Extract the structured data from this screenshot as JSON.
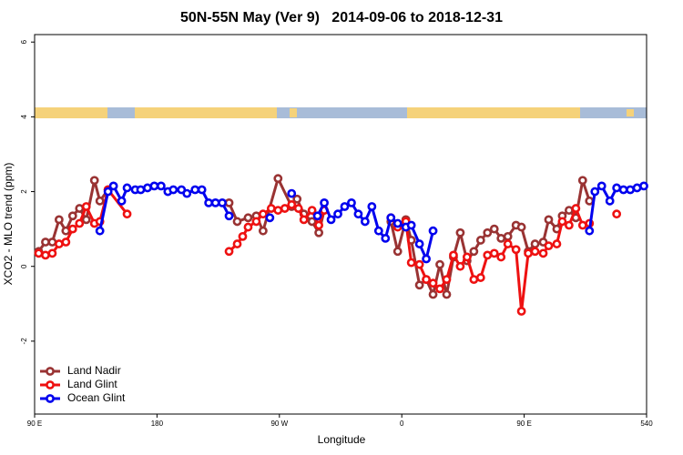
{
  "chart_data": {
    "type": "line",
    "title": "50N-55N May (Ver 9)   2014-09-06 to 2018-12-31",
    "x_label": "Longitude",
    "y_label": "XCO2 - MLO trend (ppm)",
    "xlim": [
      90,
      540
    ],
    "xticks": [
      {
        "value": 90,
        "label": "90 E"
      },
      180,
      {
        "value": 270,
        "label": "90 W"
      },
      {
        "value": 360,
        "label": "0"
      },
      {
        "value": 450,
        "label": "90 E"
      },
      540
    ],
    "ylim": [
      -3.95,
      6.2
    ],
    "yticks": [
      -2,
      0,
      2,
      4,
      6
    ],
    "legend": "bottom-left",
    "series": [
      {
        "name": "Land Nadir",
        "color": "#993333",
        "x": [
          93,
          98,
          103,
          108,
          113,
          118,
          123,
          128,
          134,
          138,
          144,
          190,
          233,
          239,
          247,
          253,
          258,
          269,
          279,
          283,
          288,
          294,
          299,
          303,
          330,
          352,
          357,
          363,
          367,
          373,
          378,
          383,
          388,
          393,
          398,
          403,
          408,
          413,
          418,
          423,
          428,
          433,
          438,
          444,
          448,
          453,
          458,
          464,
          468,
          474,
          478,
          483,
          488,
          493,
          498
        ],
        "values": [
          0.4,
          0.65,
          0.65,
          1.25,
          0.95,
          1.35,
          1.55,
          1.25,
          2.3,
          1.75,
          2.05,
          null,
          1.7,
          1.2,
          1.3,
          1.35,
          0.95,
          2.35,
          1.6,
          1.8,
          1.4,
          1.2,
          0.9,
          1.5,
          null,
          1.2,
          0.4,
          1.25,
          0.7,
          -0.5,
          -0.35,
          -0.75,
          0.05,
          -0.75,
          0.25,
          0.9,
          0.15,
          0.4,
          0.7,
          0.9,
          1.0,
          0.75,
          0.8,
          1.1,
          1.05,
          0.4,
          0.6,
          0.65,
          1.25,
          1.0,
          1.35,
          1.5,
          1.3,
          2.3,
          1.75
        ]
      },
      {
        "name": "Land Glint",
        "color": "#ee1111",
        "x": [
          93,
          98,
          103,
          108,
          113,
          118,
          123,
          128,
          134,
          138,
          144,
          158,
          190,
          233,
          239,
          243,
          247,
          253,
          258,
          264,
          269,
          274,
          279,
          284,
          288,
          294,
          299,
          303,
          330,
          352,
          357,
          363,
          367,
          373,
          378,
          383,
          388,
          393,
          398,
          403,
          408,
          413,
          418,
          423,
          428,
          433,
          438,
          444,
          448,
          453,
          458,
          464,
          468,
          474,
          478,
          483,
          488,
          493,
          498,
          508,
          518
        ],
        "values": [
          0.35,
          0.3,
          0.35,
          0.6,
          0.65,
          1.0,
          1.15,
          1.6,
          1.15,
          1.2,
          2.05,
          1.4,
          null,
          0.4,
          0.6,
          0.8,
          1.05,
          1.2,
          1.4,
          1.55,
          1.5,
          1.55,
          1.65,
          1.55,
          1.25,
          1.5,
          1.1,
          1.5,
          null,
          1.3,
          1.05,
          1.2,
          0.1,
          0.05,
          -0.35,
          -0.45,
          -0.6,
          -0.35,
          0.3,
          0.0,
          0.25,
          -0.35,
          -0.3,
          0.3,
          0.35,
          0.25,
          0.6,
          0.45,
          -1.2,
          0.35,
          0.4,
          0.35,
          0.55,
          0.6,
          1.2,
          1.1,
          1.55,
          1.1,
          1.15,
          null,
          1.4
        ]
      },
      {
        "name": "Ocean Glint",
        "color": "#0000ee",
        "x": [
          138,
          144,
          148,
          154,
          158,
          164,
          168,
          173,
          178,
          183,
          188,
          192,
          198,
          202,
          208,
          213,
          218,
          223,
          228,
          233,
          248,
          263,
          270,
          279,
          290,
          298,
          303,
          308,
          313,
          318,
          323,
          328,
          333,
          338,
          343,
          348,
          352,
          357,
          363,
          367,
          373,
          378,
          383,
          440,
          498,
          502,
          507,
          513,
          518,
          523,
          528,
          533,
          538
        ],
        "values": [
          0.95,
          2.0,
          2.15,
          1.75,
          2.1,
          2.05,
          2.05,
          2.1,
          2.15,
          2.15,
          2.0,
          2.05,
          2.05,
          1.95,
          2.05,
          2.05,
          1.7,
          1.7,
          1.7,
          1.35,
          null,
          1.3,
          null,
          1.95,
          null,
          1.35,
          1.7,
          1.25,
          1.4,
          1.6,
          1.7,
          1.4,
          1.2,
          1.6,
          0.95,
          0.75,
          1.3,
          1.15,
          1.05,
          1.1,
          0.6,
          0.2,
          0.95,
          null,
          0.95,
          2.0,
          2.15,
          1.75,
          2.1,
          2.05,
          2.05,
          2.1,
          2.15
        ]
      }
    ]
  }
}
